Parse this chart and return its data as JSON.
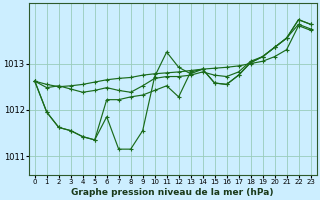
{
  "xlabel": "Graphe pression niveau de la mer (hPa)",
  "background_color": "#cceeff",
  "grid_color": "#99ccbb",
  "line_color": "#1a6b1a",
  "ylim": [
    1010.6,
    1014.3
  ],
  "xlim": [
    -0.5,
    23.5
  ],
  "yticks": [
    1011,
    1012,
    1013
  ],
  "xticks": [
    0,
    1,
    2,
    3,
    4,
    5,
    6,
    7,
    8,
    9,
    10,
    11,
    12,
    13,
    14,
    15,
    16,
    17,
    18,
    19,
    20,
    21,
    22,
    23
  ],
  "series": [
    [
      1012.62,
      1012.48,
      1012.52,
      1012.45,
      1012.38,
      1012.42,
      1012.48,
      1012.42,
      1012.38,
      1012.52,
      1012.68,
      1012.72,
      1012.72,
      1012.75,
      1012.82,
      1012.75,
      1012.72,
      1012.82,
      1013.05,
      1013.15,
      1013.35,
      1013.55,
      1013.85,
      1013.75
    ],
    [
      1012.62,
      1012.55,
      1012.5,
      1012.52,
      1012.55,
      1012.6,
      1012.65,
      1012.68,
      1012.7,
      1012.75,
      1012.78,
      1012.8,
      1012.82,
      1012.85,
      1012.88,
      1012.9,
      1012.92,
      1012.95,
      1013.0,
      1013.05,
      1013.15,
      1013.3,
      1013.82,
      1013.72
    ],
    [
      1012.62,
      1011.95,
      1011.62,
      1011.55,
      1011.42,
      1011.35,
      1011.85,
      1011.15,
      1011.15,
      1011.55,
      1012.72,
      1013.25,
      1012.92,
      1012.78,
      1012.88,
      1012.58,
      1012.55,
      1012.75,
      1013.02,
      1013.15,
      1013.35,
      1013.55,
      1013.95,
      1013.85
    ],
    [
      1012.62,
      1011.95,
      1011.62,
      1011.55,
      1011.42,
      1011.35,
      1012.22,
      1012.22,
      1012.28,
      1012.32,
      1012.42,
      1012.52,
      1012.28,
      1012.82,
      1012.88,
      1012.58,
      1012.55,
      1012.75,
      1013.02,
      1013.15,
      1013.35,
      1013.55,
      1013.95,
      1013.85
    ]
  ]
}
